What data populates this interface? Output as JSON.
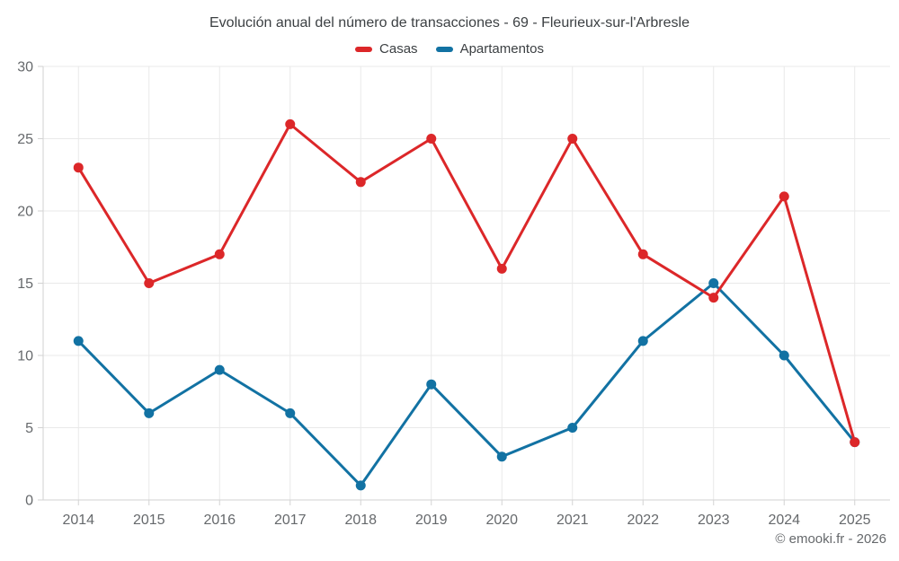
{
  "chart_data": {
    "type": "line",
    "title": "Evolución anual del número de transacciones - 69 - Fleurieux-sur-l'Arbresle",
    "categories": [
      "2014",
      "2015",
      "2016",
      "2017",
      "2018",
      "2019",
      "2020",
      "2021",
      "2022",
      "2023",
      "2024",
      "2025"
    ],
    "series": [
      {
        "name": "Casas",
        "color": "#dc2729",
        "values": [
          23,
          15,
          17,
          26,
          22,
          25,
          16,
          25,
          17,
          14,
          21,
          4
        ]
      },
      {
        "name": "Apartamentos",
        "color": "#1272a3",
        "values": [
          11,
          6,
          9,
          6,
          1,
          8,
          3,
          5,
          11,
          15,
          10,
          4
        ]
      }
    ],
    "xlabel": "",
    "ylabel": "",
    "ylim": [
      0,
      30
    ],
    "yticks": [
      0,
      5,
      10,
      15,
      20,
      25,
      30
    ],
    "grid": true,
    "legend_position": "top"
  },
  "footer": {
    "text": "© emooki.fr - 2026"
  },
  "colors": {
    "background": "#ffffff",
    "grid": "#e9e9e9",
    "axis": "#d2d2d2",
    "axis_label": "#66696c",
    "title_text": "#3c4043",
    "legend_text": "#3c4043",
    "footer_text": "#66696c"
  }
}
